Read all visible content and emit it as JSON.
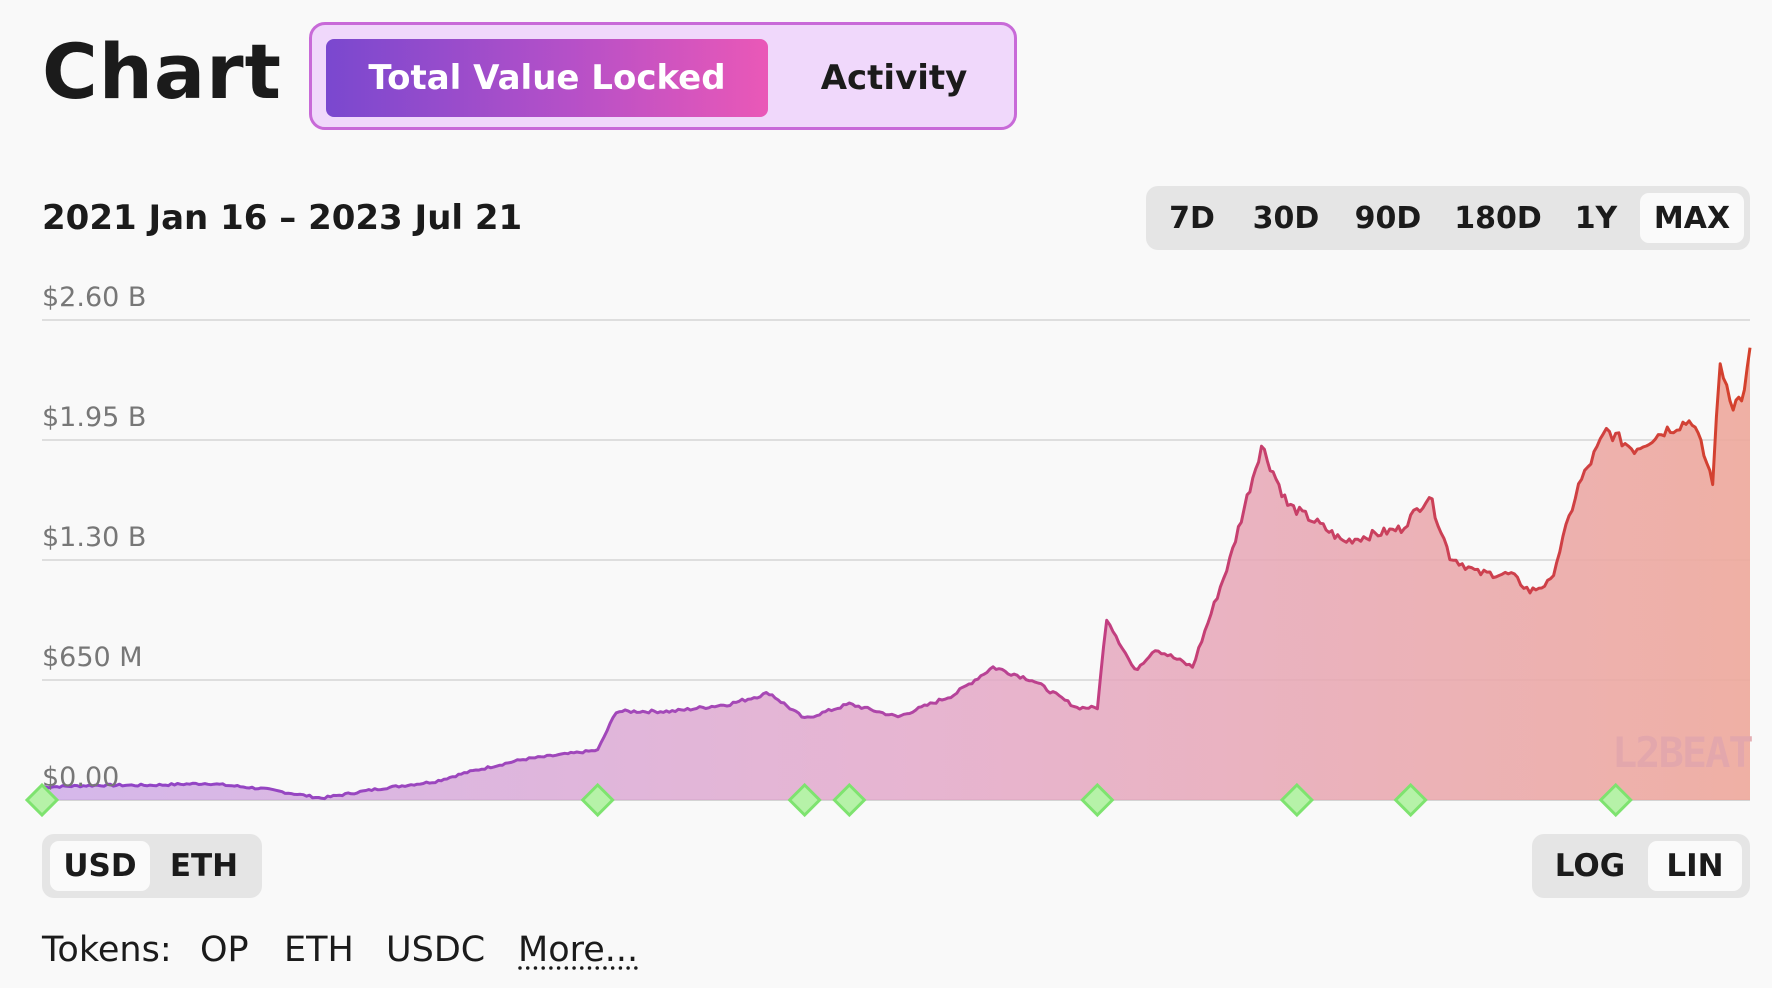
{
  "header": {
    "title": "Chart",
    "tabs": [
      {
        "label": "Total Value Locked",
        "active": true
      },
      {
        "label": "Activity",
        "active": false
      }
    ]
  },
  "date_range": "2021 Jan 16 – 2023 Jul 21",
  "time_ranges": {
    "options": [
      "7D",
      "30D",
      "90D",
      "180D",
      "1Y",
      "MAX"
    ],
    "selected": "MAX"
  },
  "currency_toggle": {
    "options": [
      "USD",
      "ETH"
    ],
    "selected": "USD"
  },
  "scale_toggle": {
    "options": [
      "LOG",
      "LIN"
    ],
    "selected": "LIN"
  },
  "tokens": {
    "label": "Tokens:",
    "items": [
      "OP",
      "ETH",
      "USDC"
    ],
    "more": "More..."
  },
  "watermark": "L2BEAT",
  "colors": {
    "accent_purple": "#7a48cf",
    "accent_pink": "#ea58b7",
    "line_start": "#8e44c8",
    "line_mid": "#c23f82",
    "line_end": "#d4412c",
    "milestone": "#7ee36f"
  },
  "chart_data": {
    "type": "area",
    "ylim": [
      0,
      2.6
    ],
    "y_tick_labels": [
      "$2.60 B",
      "$1.95 B",
      "$1.30 B",
      "$650 M",
      "$0.00"
    ],
    "y_ticks": [
      2.6,
      1.95,
      1.3,
      0.65,
      0
    ],
    "y_unit": "billion USD",
    "x_range": [
      "2021-01-16",
      "2023-07-21"
    ],
    "grid": true,
    "series": [
      {
        "values": [
          [
            "2021-01-16",
            0.07
          ],
          [
            "2021-02-15",
            0.08
          ],
          [
            "2021-03-15",
            0.08
          ],
          [
            "2021-04-15",
            0.09
          ],
          [
            "2021-05-15",
            0.06
          ],
          [
            "2021-06-15",
            0.01
          ],
          [
            "2021-07-15",
            0.06
          ],
          [
            "2021-08-15",
            0.1
          ],
          [
            "2021-09-01",
            0.15
          ],
          [
            "2021-10-01",
            0.22
          ],
          [
            "2021-11-10",
            0.27
          ],
          [
            "2021-11-20",
            0.48
          ],
          [
            "2021-12-20",
            0.48
          ],
          [
            "2022-01-20",
            0.52
          ],
          [
            "2022-02-10",
            0.58
          ],
          [
            "2022-03-01",
            0.44
          ],
          [
            "2022-03-25",
            0.52
          ],
          [
            "2022-04-20",
            0.45
          ],
          [
            "2022-05-20",
            0.57
          ],
          [
            "2022-06-10",
            0.72
          ],
          [
            "2022-07-01",
            0.65
          ],
          [
            "2022-07-25",
            0.5
          ],
          [
            "2022-08-05",
            0.5
          ],
          [
            "2022-08-10",
            0.99
          ],
          [
            "2022-08-25",
            0.7
          ],
          [
            "2022-09-05",
            0.82
          ],
          [
            "2022-09-25",
            0.72
          ],
          [
            "2022-10-15",
            1.3
          ],
          [
            "2022-11-01",
            1.92
          ],
          [
            "2022-11-15",
            1.6
          ],
          [
            "2022-12-01",
            1.5
          ],
          [
            "2022-12-15",
            1.4
          ],
          [
            "2023-01-01",
            1.44
          ],
          [
            "2023-01-15",
            1.47
          ],
          [
            "2023-01-30",
            1.65
          ],
          [
            "2023-02-10",
            1.32
          ],
          [
            "2023-02-25",
            1.23
          ],
          [
            "2023-03-15",
            1.22
          ],
          [
            "2023-03-25",
            1.13
          ],
          [
            "2023-04-05",
            1.18
          ],
          [
            "2023-04-20",
            1.7
          ],
          [
            "2023-05-05",
            2.0
          ],
          [
            "2023-05-20",
            1.9
          ],
          [
            "2023-06-05",
            2.0
          ],
          [
            "2023-06-20",
            2.06
          ],
          [
            "2023-07-01",
            1.73
          ],
          [
            "2023-07-05",
            2.36
          ],
          [
            "2023-07-12",
            2.14
          ],
          [
            "2023-07-18",
            2.2
          ],
          [
            "2023-07-21",
            2.45
          ]
        ]
      }
    ],
    "milestones": [
      "2021-01-16",
      "2021-11-10",
      "2022-03-01",
      "2022-03-25",
      "2022-08-05",
      "2022-11-20",
      "2023-01-20",
      "2023-05-10"
    ]
  }
}
